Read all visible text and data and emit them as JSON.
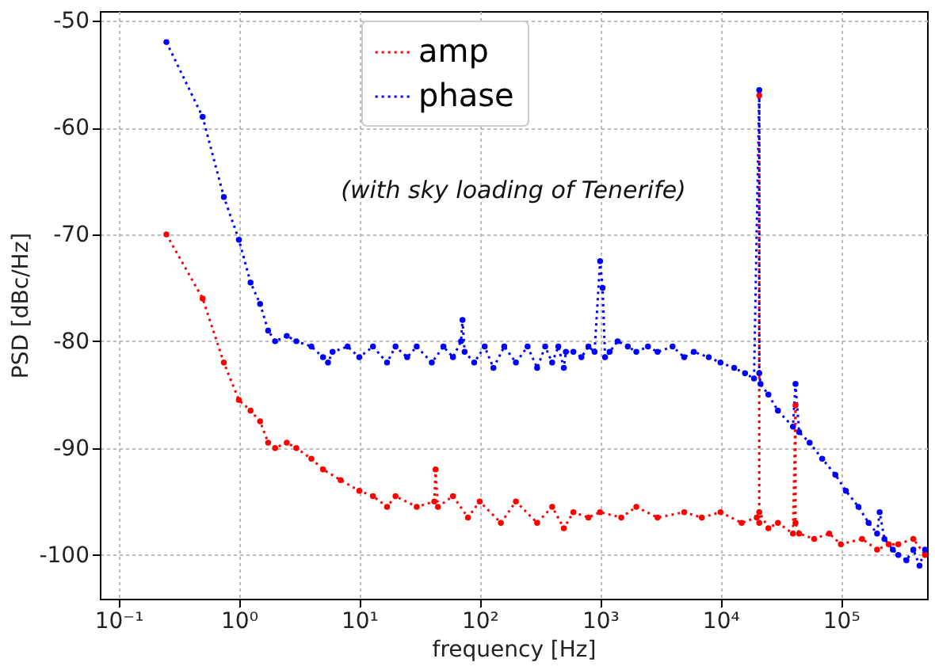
{
  "chart_data": {
    "type": "line",
    "xlabel": "frequency [Hz]",
    "ylabel": "PSD [dBc/Hz]",
    "log": "x",
    "grid": true,
    "legend": "top",
    "marker": "circle",
    "line_style": "dotted",
    "annotations": [
      "(with sky loading of Tenerife)"
    ],
    "xlim": [
      0.07,
      520000
    ],
    "ylim": [
      -104.1,
      -49.1
    ],
    "xticks": [
      {
        "value": 0.1,
        "label": "10⁻¹"
      },
      {
        "value": 1,
        "label": "10⁰"
      },
      {
        "value": 10,
        "label": "10¹"
      },
      {
        "value": 100,
        "label": "10²"
      },
      {
        "value": 1000,
        "label": "10³"
      },
      {
        "value": 10000,
        "label": "10⁴"
      },
      {
        "value": 100000,
        "label": "10⁵"
      }
    ],
    "yticks": [
      -100,
      -90,
      -80,
      -70,
      -60,
      -50
    ],
    "series": [
      {
        "name": "amp",
        "color": "#ff0000",
        "x": [
          0.25,
          0.5,
          0.75,
          1,
          1.25,
          1.5,
          1.75,
          2,
          2.5,
          3,
          4,
          5,
          7,
          10,
          13,
          17,
          20,
          30,
          42,
          43,
          45,
          60,
          80,
          100,
          150,
          200,
          300,
          400,
          500,
          600,
          800,
          1000,
          1500,
          2000,
          3000,
          5000,
          7000,
          10000,
          15000,
          20000,
          21000,
          21000,
          21000,
          25000,
          30000,
          40000,
          42000,
          42000,
          45000,
          60000,
          80000,
          100000,
          150000,
          200000,
          250000,
          300000,
          400000,
          500000
        ],
        "values": [
          -70,
          -76,
          -82,
          -85.5,
          -86.5,
          -87.5,
          -89.5,
          -90,
          -89.5,
          -90,
          -91,
          -92,
          -93,
          -94,
          -94.5,
          -95.5,
          -94.5,
          -95.5,
          -95,
          -92,
          -95.5,
          -94.5,
          -96.5,
          -95,
          -97,
          -95,
          -97,
          -95.5,
          -97.5,
          -96,
          -96.5,
          -96,
          -96.5,
          -95.5,
          -96.5,
          -96,
          -96.5,
          -96,
          -97,
          -96.5,
          -97,
          -57,
          -96,
          -97.5,
          -97,
          -98,
          -86,
          -97,
          -98,
          -98.5,
          -98,
          -99,
          -98.5,
          -99.5,
          -99,
          -99,
          -98.5,
          -100
        ]
      },
      {
        "name": "phase",
        "color": "#0000ff",
        "x": [
          0.25,
          0.5,
          0.75,
          1,
          1.25,
          1.5,
          1.75,
          2,
          2.5,
          3,
          4,
          5,
          5.5,
          6,
          8,
          10,
          13,
          17,
          20,
          25,
          30,
          40,
          50,
          60,
          70,
          72,
          75,
          90,
          110,
          130,
          160,
          200,
          250,
          300,
          350,
          400,
          450,
          500,
          520,
          600,
          700,
          800,
          900,
          1000,
          1050,
          1100,
          1200,
          1400,
          1700,
          2000,
          2500,
          3000,
          4000,
          5000,
          6000,
          8000,
          10000,
          13000,
          16000,
          19000,
          21000,
          21000,
          21500,
          25000,
          30000,
          40000,
          42000,
          45000,
          55000,
          70000,
          90000,
          110000,
          140000,
          170000,
          200000,
          210000,
          230000,
          270000,
          300000,
          350000,
          400000,
          450000,
          500000
        ],
        "values": [
          -52,
          -59,
          -66.5,
          -70.5,
          -74.5,
          -76.5,
          -79,
          -80,
          -79.5,
          -80,
          -80.5,
          -81.5,
          -82,
          -81,
          -80.5,
          -81.5,
          -80.5,
          -82,
          -80.5,
          -81.5,
          -80.5,
          -82,
          -80.5,
          -81.5,
          -80,
          -78,
          -81,
          -82,
          -80.5,
          -82.5,
          -80.5,
          -82,
          -80.5,
          -82.5,
          -80.5,
          -82,
          -80.5,
          -82.5,
          -81,
          -81,
          -81.5,
          -80.5,
          -81,
          -72.5,
          -75,
          -81.5,
          -81,
          -80,
          -80.5,
          -81,
          -80.5,
          -81,
          -80.5,
          -81.5,
          -81,
          -81.5,
          -82,
          -82.5,
          -83,
          -83.5,
          -56.5,
          -83,
          -84,
          -85,
          -86.5,
          -88,
          -84,
          -88.5,
          -89.5,
          -91,
          -92.5,
          -94,
          -95.5,
          -97,
          -98,
          -96,
          -98.5,
          -99.5,
          -100,
          -100.5,
          -99.5,
          -101,
          -99.5
        ]
      }
    ]
  }
}
